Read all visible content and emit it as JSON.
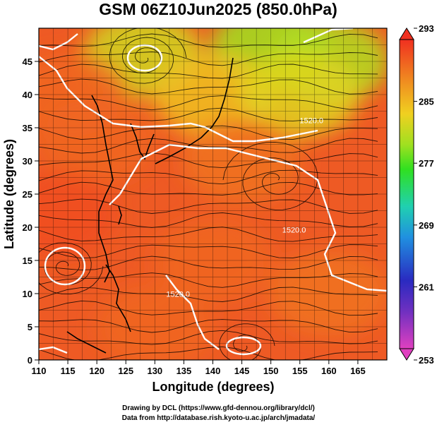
{
  "chart_data": {
    "type": "heatmap",
    "title": "GSM 06Z10Jun2025 (850.0hPa)",
    "xlabel": "Longitude (degrees)",
    "ylabel": "Latitude  (degrees)",
    "xlim": [
      110,
      170
    ],
    "ylim": [
      0,
      50
    ],
    "xticks": [
      110,
      115,
      120,
      125,
      130,
      135,
      140,
      145,
      150,
      155,
      160,
      165
    ],
    "yticks": [
      0,
      5,
      10,
      15,
      20,
      25,
      30,
      35,
      40,
      45
    ],
    "colorbar": {
      "range": [
        253,
        293
      ],
      "ticks": [
        253,
        261,
        269,
        277,
        285,
        293
      ],
      "colors": [
        "#e040c0",
        "#3030c0",
        "#2090e0",
        "#20d0a0",
        "#30e020",
        "#a0e020",
        "#f0d020",
        "#f08020",
        "#f04020"
      ]
    },
    "contour_labels": [
      {
        "text": "1520.0",
        "lon": 157,
        "lat": 35.7
      },
      {
        "text": "1520.0",
        "lon": 154,
        "lat": 19.2
      },
      {
        "text": "1520.0",
        "lon": 134,
        "lat": 9.5
      }
    ],
    "field_anchors": [
      {
        "lon": 128,
        "lat": 46,
        "value": 281
      },
      {
        "lon": 150,
        "lat": 47,
        "value": 278
      },
      {
        "lon": 160,
        "lat": 45,
        "value": 279
      },
      {
        "lon": 140,
        "lat": 40,
        "value": 284
      },
      {
        "lon": 155,
        "lat": 40,
        "value": 282
      },
      {
        "lon": 115,
        "lat": 40,
        "value": 290
      },
      {
        "lon": 120,
        "lat": 33,
        "value": 290
      },
      {
        "lon": 145,
        "lat": 30,
        "value": 289
      },
      {
        "lon": 113,
        "lat": 22,
        "value": 292
      },
      {
        "lon": 140,
        "lat": 15,
        "value": 290
      },
      {
        "lon": 160,
        "lat": 10,
        "value": 289
      },
      {
        "lon": 130,
        "lat": 5,
        "value": 290
      }
    ]
  },
  "credits": {
    "line1": "Drawing by DCL (https://www.gfd-dennou.org/library/dcl/)",
    "line2": "Data from http://database.rish.kyoto-u.ac.jp/arch/jmadata/"
  }
}
